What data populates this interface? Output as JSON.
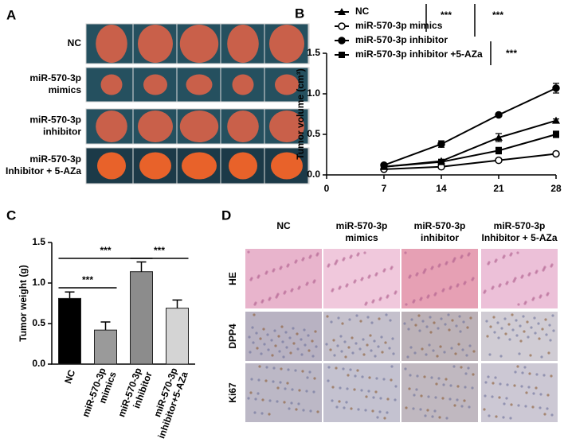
{
  "panels": {
    "a": {
      "letter": "A",
      "rows": [
        [
          "NC"
        ],
        [
          "miR-570-3p",
          "mimics"
        ],
        [
          "miR-570-3p",
          "inhibitor"
        ],
        [
          "miR-570-3p",
          "Inhibitor + 5-AZa"
        ]
      ]
    },
    "b": {
      "letter": "B"
    },
    "c": {
      "letter": "C"
    },
    "d": {
      "letter": "D",
      "columns": [
        [
          "NC"
        ],
        [
          "miR-570-3p",
          "mimics"
        ],
        [
          "miR-570-3p",
          "inhibitor"
        ],
        [
          "miR-570-3p",
          "Inhibitor + 5-AZa"
        ]
      ],
      "rows": [
        "HE",
        "DPP4",
        "Ki67"
      ]
    }
  },
  "chart_data": [
    {
      "type": "line",
      "y_label": "Tumor volume (cm³)",
      "x": [
        7,
        14,
        21,
        28
      ],
      "xlim": [
        0,
        28
      ],
      "xticks": [
        0,
        7,
        14,
        21,
        28
      ],
      "ylim": [
        0,
        1.5
      ],
      "yticks": [
        {
          "value": 0,
          "label": "0.0"
        },
        0.5,
        {
          "value": 1,
          "label": "1.0"
        },
        1.5
      ],
      "series": [
        {
          "name": "NC",
          "color": "#000000",
          "marker": "triangle",
          "values": [
            0.1,
            0.17,
            0.46,
            0.67
          ],
          "errors": [
            0.02,
            0.02,
            0.05,
            0.02
          ]
        },
        {
          "name": "miR-570-3p mimics",
          "color": "#000000",
          "marker": "open-circle",
          "values": [
            0.07,
            0.1,
            0.18,
            0.26
          ],
          "errors": [
            0.01,
            0.01,
            0.02,
            0.02
          ]
        },
        {
          "name": "miR-570-3p inhibitor",
          "color": "#000000",
          "marker": "circle",
          "values": [
            0.12,
            0.38,
            0.74,
            1.07
          ],
          "errors": [
            0.02,
            0.04,
            0.02,
            0.06
          ]
        },
        {
          "name": "miR-570-3p inhibitor +5-AZa",
          "color": "#000000",
          "marker": "square",
          "values": [
            0.1,
            0.16,
            0.3,
            0.5
          ],
          "errors": [
            0.03,
            0.03,
            0.04,
            0.04
          ]
        }
      ],
      "annotations": [
        "***",
        "***",
        "***"
      ]
    },
    {
      "type": "bar",
      "y_label": "Tumor weight (g)",
      "categories": [
        "NC",
        "miR-570-3p mimics",
        "miR-570-3p inhibitor",
        "miR-570-3p inhibitor+5-AZa"
      ],
      "values": [
        0.81,
        0.42,
        1.14,
        0.69
      ],
      "errors": [
        0.08,
        0.1,
        0.12,
        0.1
      ],
      "colors": [
        "#000000",
        "#9a9a9a",
        "#8c8c8c",
        "#d4d4d4"
      ],
      "ylim": [
        0,
        1.5
      ],
      "yticks": [
        {
          "value": 0,
          "label": "0.0"
        },
        0.5,
        {
          "value": 1,
          "label": "1.0"
        },
        1.5
      ],
      "annotations": [
        "***",
        "***",
        "***"
      ]
    }
  ]
}
